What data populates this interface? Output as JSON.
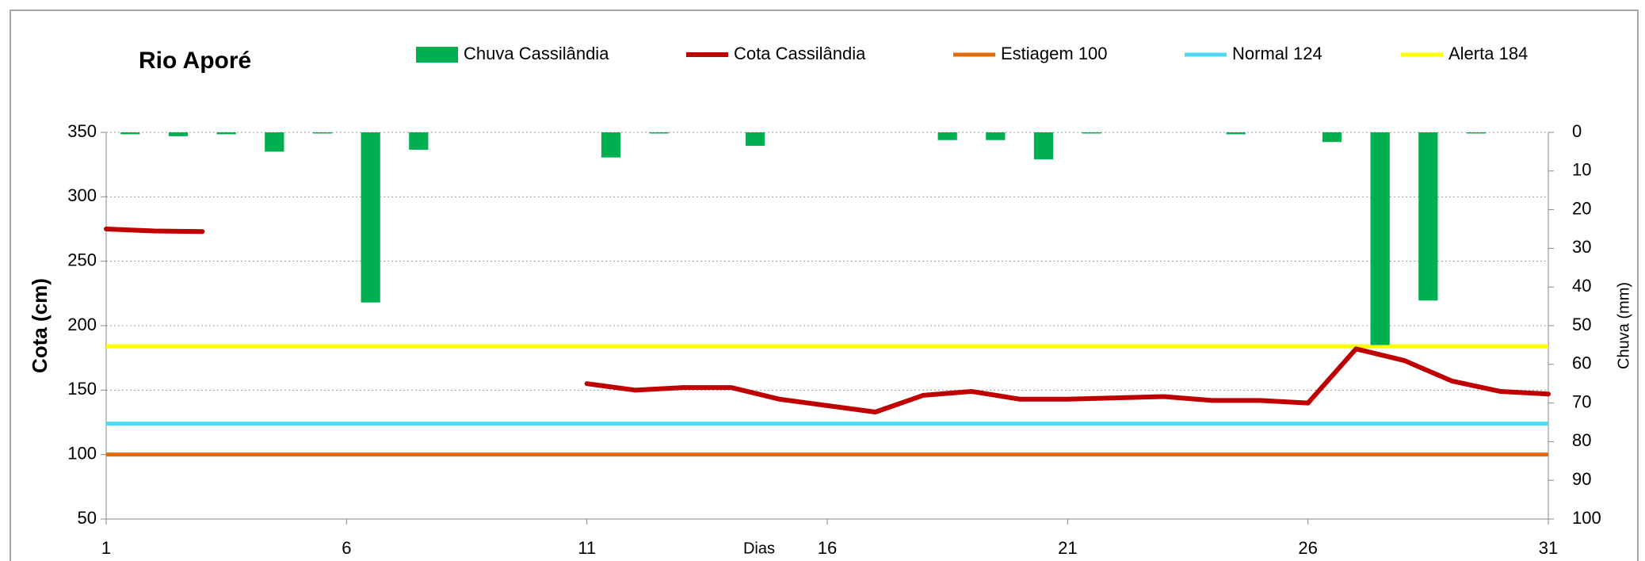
{
  "chart_data": {
    "type": "bar-line",
    "title": "Rio Aporé",
    "y_label": "Cota  (cm)",
    "y2_label": "Chuva (mm)",
    "x_label": "Dias",
    "x": [
      1,
      2,
      3,
      4,
      5,
      6,
      7,
      8,
      9,
      10,
      11,
      12,
      13,
      14,
      15,
      16,
      17,
      18,
      19,
      20,
      21,
      22,
      23,
      24,
      25,
      26,
      27,
      28,
      29,
      30,
      31
    ],
    "xlim": [
      1,
      31
    ],
    "xticks": [
      1,
      6,
      11,
      16,
      21,
      26,
      31
    ],
    "ylim": [
      50,
      350
    ],
    "yticks": [
      50,
      100,
      150,
      200,
      250,
      300,
      350
    ],
    "y2lim": [
      0,
      100
    ],
    "y2ticks": [
      0,
      10,
      20,
      30,
      40,
      50,
      60,
      70,
      80,
      90,
      100
    ],
    "y2_reversed": true,
    "grid": true,
    "series": [
      {
        "name": "Chuva Cassilândia",
        "type": "bar",
        "axis": "y2",
        "color": "#00b050",
        "values": [
          0.5,
          1,
          0.5,
          5,
          0.3,
          44,
          4.5,
          0,
          0,
          0,
          6.5,
          0.3,
          0,
          3.5,
          0,
          0,
          0,
          2,
          2,
          7,
          0.3,
          0,
          0,
          0.5,
          0,
          2.5,
          55,
          43.5,
          0.3,
          0,
          null
        ]
      },
      {
        "name": "Cota Cassilândia",
        "type": "line",
        "color": "#c00000",
        "values": [
          275,
          273.5,
          273,
          null,
          null,
          null,
          null,
          null,
          null,
          null,
          155,
          150,
          152,
          152,
          143,
          138,
          133,
          146,
          149,
          143,
          143,
          144,
          145,
          142,
          142,
          140,
          182,
          173,
          157,
          149,
          147
        ]
      },
      {
        "name": "Estiagem 100",
        "type": "hline",
        "color": "#e36c09",
        "value": 100
      },
      {
        "name": "Normal  124",
        "type": "hline",
        "color": "#4dd9f0",
        "value": 124
      },
      {
        "name": "Alerta 184",
        "type": "hline",
        "color": "#ffff00",
        "value": 184
      }
    ]
  }
}
